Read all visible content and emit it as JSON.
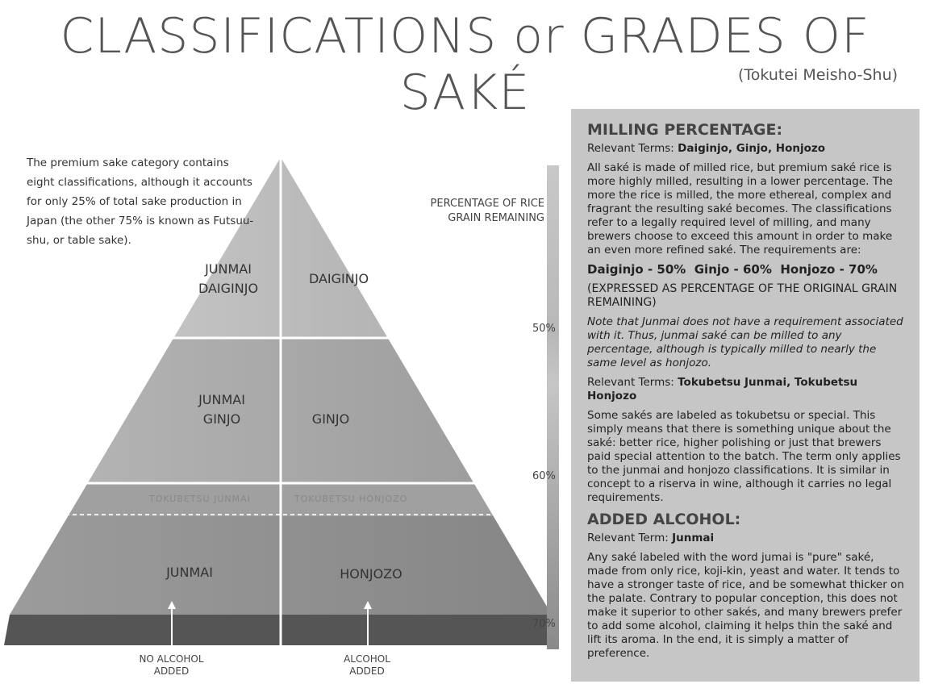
{
  "title": "CLASSIFICATIONS or GRADES OF SAKÉ",
  "subtitle": "(Tokutei Meisho-Shu)",
  "intro": "The premium sake category contains eight classifications, although it accounts for only 25% of total sake production in Japan (the other 75% is known as Futsuu-shu, or table sake).",
  "pyramid": {
    "junmai_daiginjo": "JUNMAI DAIGINJO",
    "daiginjo": "DAIGINJO",
    "junmai_ginjo": "JUNMAI GINJO",
    "ginjo": "GINJO",
    "tokubetsu_junmai": "TOKUBETSU JUNMAI",
    "tokubetsu_honjozo": "TOKUBETSU HONJOZO",
    "junmai": "JUNMAI",
    "honjozo": "HONJOZO",
    "no_alcohol": "NO ALCOHOL ADDED",
    "alcohol": "ALCOHOL ADDED"
  },
  "scale": {
    "title": "PERCENTAGE OF RICE GRAIN REMAINING",
    "p50": "50%",
    "p60": "60%",
    "p70": "70%"
  },
  "panel": {
    "milling_heading": "MILLING PERCENTAGE:",
    "rt_label": "Relevant Terms:",
    "rt1": "Daiginjo, Ginjo, Honjozo",
    "milling_body": "All saké is made of milled rice, but premium saké rice is more highly milled, resulting in a lower percentage. The more the rice is milled, the more ethereal, complex and fragrant the resulting saké becomes. The classifications refer to a legally required level of milling, and many brewers choose to exceed this amount in order to make an even more refined saké. The requirements are:",
    "requirements": "Daiginjo - 50%  Ginjo - 60%  Honjozo - 70%",
    "expressed": "(EXPRESSED AS PERCENTAGE OF THE ORIGINAL GRAIN REMAINING)",
    "note": "Note that Junmai does not have a requirement associated with it. Thus, junmai saké can be milled to any percentage, although is typically milled to nearly the same level as honjozo.",
    "rt2": "Tokubetsu Junmai, Tokubetsu Honjozo",
    "tokubetsu_body": "Some sakés are labeled as tokubetsu or special. This simply means that there is something unique about the saké: better rice, higher polishing or just that brewers paid special attention to the batch. The term only applies to the junmai and honjozo classifications. It is similar in concept to a riserva in wine, although it carries no legal requirements.",
    "alcohol_heading": "ADDED ALCOHOL:",
    "rt3_label": "Relevant Term:",
    "rt3": "Junmai",
    "alcohol_body": "Any saké labeled with the word jumai is \"pure\" saké, made from only rice, koji-kin, yeast and water. It tends to have a stronger taste of rice, and be somewhat thicker on the palate. Contrary to popular conception, this does not make it superior to other sakés, and many brewers prefer to add some alcohol, claiming it helps thin the saké and lift its aroma. In the end, it is simply a matter of preference."
  }
}
